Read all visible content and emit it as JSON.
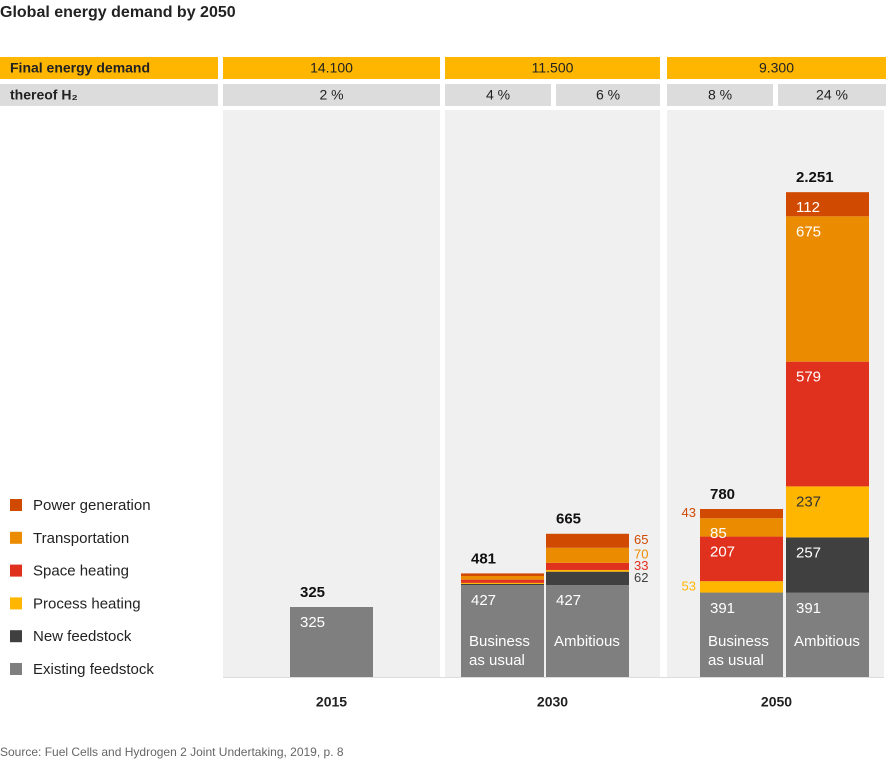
{
  "chart_data": {
    "type": "stacked_bar",
    "title": "Global energy demand by 2050",
    "header": {
      "rows": [
        {
          "label": "Final energy demand",
          "values": [
            14100,
            11500,
            9300
          ],
          "value_labels": [
            "14.100",
            "11.500",
            "9.300"
          ],
          "color": "#ffb600"
        },
        {
          "label": "thereof H₂",
          "values": [
            2,
            4,
            6,
            8,
            24
          ],
          "value_labels": [
            "2 %",
            "4 %",
            "6 %",
            "8 %",
            "24 %"
          ],
          "color": "#dcdcdc"
        }
      ]
    },
    "groups": [
      "2015",
      "2030",
      "2050"
    ],
    "categories": [
      null,
      "Business as usual",
      "Ambitious",
      "Business as usual",
      "Ambitious"
    ],
    "series": [
      {
        "name": "Existing feedstock",
        "color": "#7f7f7f",
        "values": [
          325,
          427,
          427,
          391,
          391
        ],
        "value_labels": [
          "325",
          "427",
          "427",
          "391",
          "391"
        ]
      },
      {
        "name": "New feedstock",
        "color": "#404040",
        "values": [
          0,
          5,
          62,
          1,
          257
        ],
        "value_labels": [
          null,
          null,
          "62",
          null,
          "257"
        ]
      },
      {
        "name": "Process heating",
        "color": "#ffb600",
        "values": [
          0,
          5,
          8,
          53,
          237
        ],
        "value_labels": [
          null,
          null,
          null,
          "53",
          "237"
        ]
      },
      {
        "name": "Space heating",
        "color": "#e0301e",
        "values": [
          0,
          15,
          33,
          207,
          579
        ],
        "value_labels": [
          null,
          null,
          "33",
          "207",
          "579"
        ]
      },
      {
        "name": "Transportation",
        "color": "#eb8c00",
        "values": [
          0,
          17,
          70,
          85,
          675
        ],
        "value_labels": [
          null,
          null,
          "70",
          "85",
          "675"
        ]
      },
      {
        "name": "Power generation",
        "color": "#d04a02",
        "values": [
          0,
          12,
          65,
          43,
          112
        ],
        "value_labels": [
          null,
          null,
          "65",
          "43",
          "112"
        ]
      }
    ],
    "totals": {
      "values": [
        325,
        481,
        665,
        780,
        2251
      ],
      "value_labels": [
        "325",
        "481",
        "665",
        "780",
        "2.251"
      ]
    },
    "source": "Source: Fuel Cells and Hydrogen 2 Joint Undertaking, 2019, p. 8"
  }
}
